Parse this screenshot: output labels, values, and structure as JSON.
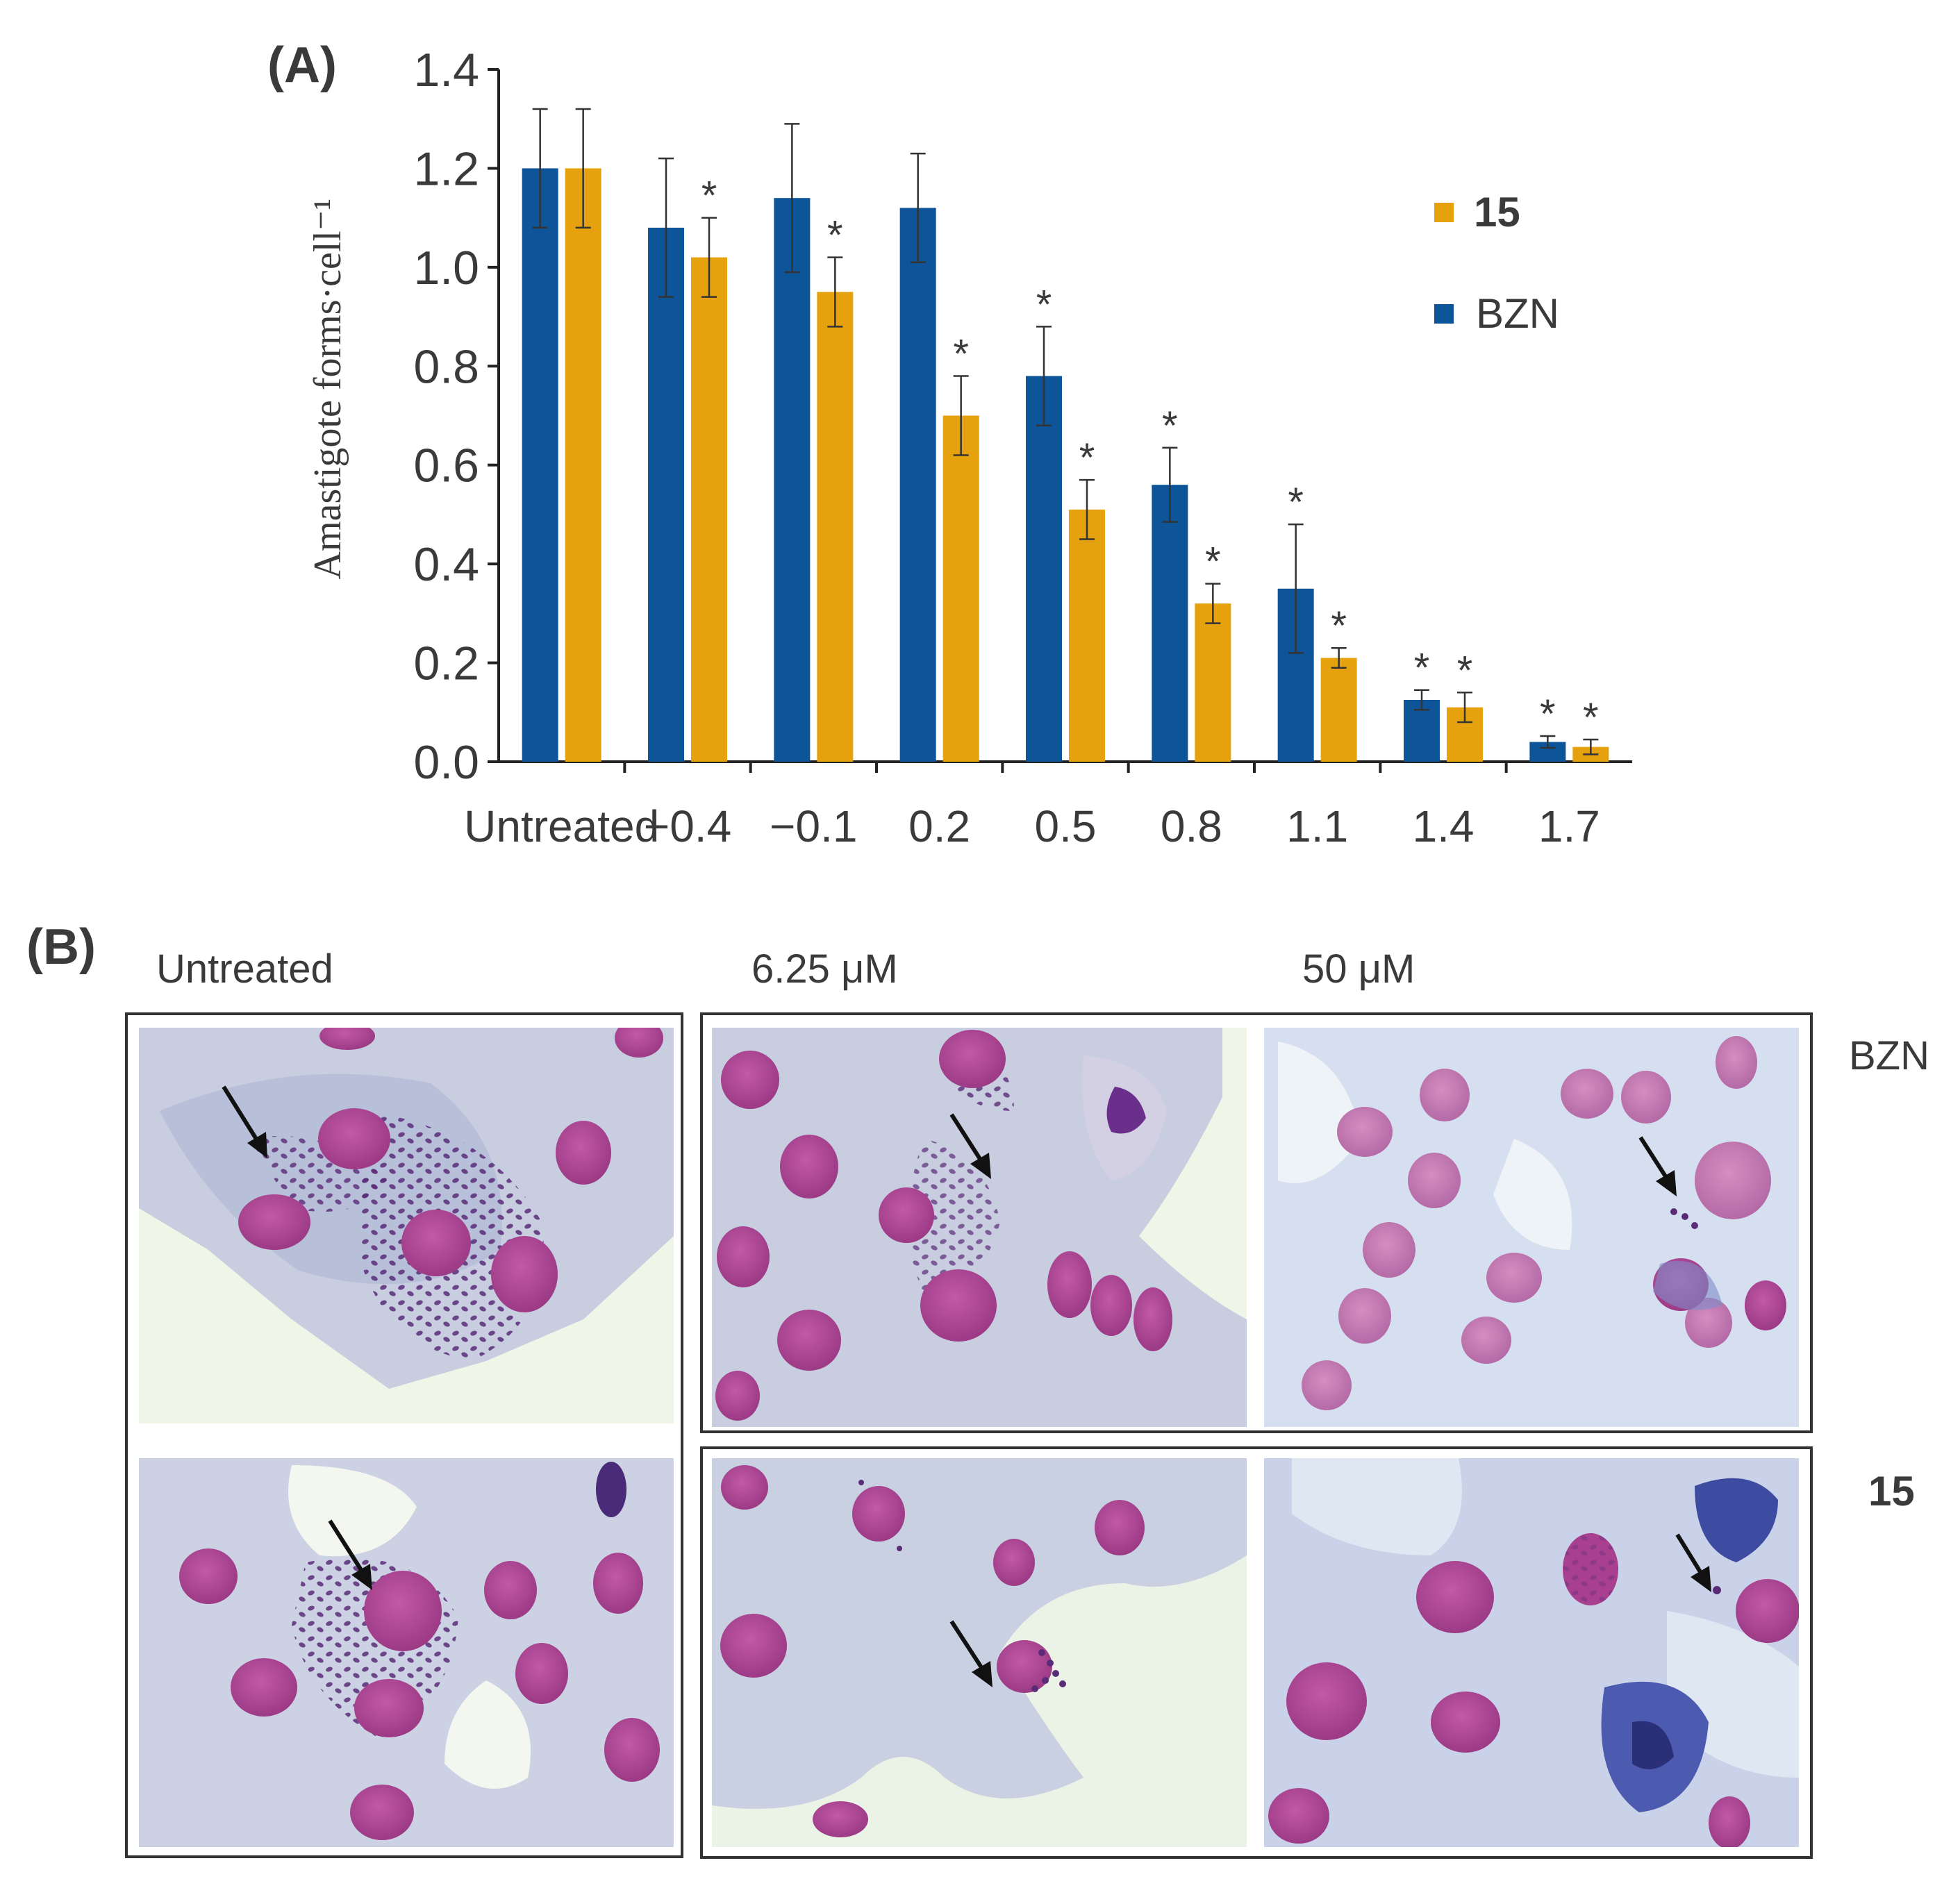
{
  "panel_a": {
    "label": "(A)"
  },
  "panel_b": {
    "label": "(B)",
    "col_untreated": "Untreated",
    "col_low": "6.25 μM",
    "col_high": "50 μM",
    "row_bzn": "BZN",
    "row_15": "15"
  },
  "chart_data": {
    "type": "bar",
    "ylabel": "Amastigote forms·cell⁻¹",
    "xlabel": "",
    "ylim": [
      0,
      1.4
    ],
    "yticks": [
      "0.0",
      "0.2",
      "0.4",
      "0.6",
      "0.8",
      "1.0",
      "1.2",
      "1.4"
    ],
    "categories": [
      "Untreated",
      "−0.4",
      "−0.1",
      "0.2",
      "0.5",
      "0.8",
      "1.1",
      "1.4",
      "1.7"
    ],
    "legend_position": "right",
    "series": [
      {
        "name": "BZN",
        "color": "#0d5499",
        "values": [
          1.2,
          1.08,
          1.14,
          1.12,
          0.78,
          0.56,
          0.35,
          0.125,
          0.04
        ],
        "errors": [
          0.12,
          0.14,
          0.15,
          0.11,
          0.1,
          0.075,
          0.13,
          0.02,
          0.012
        ],
        "significant": [
          false,
          false,
          false,
          false,
          true,
          true,
          true,
          true,
          true
        ]
      },
      {
        "name": "15",
        "color": "#e6a10e",
        "values": [
          1.2,
          1.02,
          0.95,
          0.7,
          0.51,
          0.32,
          0.21,
          0.11,
          0.03
        ],
        "errors": [
          0.12,
          0.08,
          0.07,
          0.08,
          0.06,
          0.04,
          0.02,
          0.03,
          0.015
        ],
        "significant": [
          false,
          true,
          true,
          true,
          true,
          true,
          true,
          true,
          true
        ]
      }
    ],
    "annotation": "*"
  },
  "colors": {
    "bzn": "#0d5499",
    "compound15": "#e6a10e",
    "cytoplasm": "#c3c9df",
    "nucleus": "#b84d9b",
    "amastigote": "#5a2c78",
    "background": "#eff6e8",
    "arrow": "#111111"
  },
  "icons": {
    "arrow": "arrow-down-right-icon"
  }
}
